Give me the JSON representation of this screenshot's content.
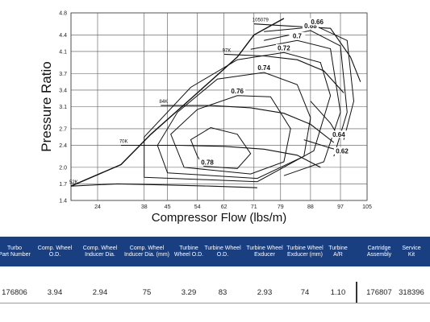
{
  "chart_data": {
    "type": "line",
    "title": "",
    "xlabel": "Compressor Flow (lbs/m)",
    "ylabel": "Pressure Ratio",
    "xlim": [
      16,
      105
    ],
    "ylim": [
      1.4,
      4.8
    ],
    "x_ticks": [
      "24",
      "38",
      "45",
      "54",
      "62",
      "71",
      "79",
      "88",
      "97",
      "105"
    ],
    "y_ticks": [
      "1.4",
      "1.7",
      "2.0",
      "2.4",
      "2.7",
      "3.1",
      "3.4",
      "3.7",
      "4.1",
      "4.4",
      "4.8"
    ],
    "grid": true,
    "surge_line": [
      [
        16,
        1.66
      ],
      [
        31,
        2.05
      ],
      [
        40,
        2.6
      ],
      [
        54,
        3.35
      ],
      [
        66,
        4.0
      ],
      [
        71,
        4.4
      ],
      [
        80,
        4.7
      ]
    ],
    "speed_lines": [
      {
        "label": "52K",
        "points": [
          [
            16,
            1.66
          ],
          [
            30,
            1.7
          ],
          [
            45,
            1.68
          ],
          [
            58,
            1.66
          ],
          [
            72,
            1.63
          ]
        ]
      },
      {
        "label": "70K",
        "points": [
          [
            31,
            2.4
          ],
          [
            48,
            2.4
          ],
          [
            62,
            2.38
          ],
          [
            74,
            2.33
          ],
          [
            84,
            2.22
          ],
          [
            91,
            2.0
          ]
        ]
      },
      {
        "label": "84K",
        "points": [
          [
            43,
            3.12
          ],
          [
            58,
            3.12
          ],
          [
            70,
            3.08
          ],
          [
            80,
            2.98
          ],
          [
            88,
            2.78
          ],
          [
            95,
            2.45
          ]
        ]
      },
      {
        "label": "97K",
        "points": [
          [
            62,
            4.05
          ],
          [
            74,
            4.02
          ],
          [
            84,
            3.95
          ],
          [
            92,
            3.75
          ],
          [
            98,
            3.35
          ]
        ]
      },
      {
        "label": "105079",
        "points": [
          [
            71,
            4.6
          ],
          [
            82,
            4.56
          ],
          [
            94,
            4.52
          ],
          [
            100,
            4.0
          ],
          [
            103,
            3.55
          ]
        ]
      }
    ],
    "efficiency_islands": [
      {
        "label": "0.78",
        "points": [
          [
            56,
            2.02
          ],
          [
            66,
            1.98
          ],
          [
            70,
            2.25
          ],
          [
            66,
            2.6
          ],
          [
            58,
            2.72
          ],
          [
            52,
            2.5
          ],
          [
            54,
            2.2
          ]
        ]
      },
      {
        "label": "0.76",
        "points": [
          [
            50,
            2.0
          ],
          [
            70,
            1.88
          ],
          [
            80,
            2.1
          ],
          [
            82,
            2.7
          ],
          [
            76,
            3.28
          ],
          [
            66,
            3.3
          ],
          [
            54,
            3.05
          ],
          [
            46,
            2.6
          ]
        ]
      },
      {
        "label": "0.74",
        "points": [
          [
            45,
            1.9
          ],
          [
            72,
            1.8
          ],
          [
            86,
            2.2
          ],
          [
            88,
            2.9
          ],
          [
            84,
            3.5
          ],
          [
            74,
            3.72
          ],
          [
            60,
            3.6
          ],
          [
            48,
            3.0
          ],
          [
            42,
            2.4
          ]
        ]
      },
      {
        "label": "0.72",
        "points": [
          [
            38,
            1.82
          ],
          [
            72,
            1.74
          ],
          [
            89,
            2.3
          ],
          [
            94,
            3.3
          ],
          [
            91,
            3.9
          ],
          [
            80,
            4.08
          ],
          [
            66,
            3.95
          ],
          [
            52,
            3.45
          ],
          [
            38,
            2.55
          ]
        ]
      },
      {
        "label": "0.7",
        "points": [
          [
            70,
            4.14
          ],
          [
            84,
            4.3
          ],
          [
            94,
            4.15
          ],
          [
            97,
            3.0
          ],
          [
            92,
            2.1
          ],
          [
            80,
            1.85
          ]
        ]
      },
      {
        "label": "0.68",
        "points": [
          [
            74,
            4.3
          ],
          [
            88,
            4.48
          ],
          [
            97,
            4.2
          ],
          [
            99,
            3.0
          ],
          [
            95,
            2.2
          ]
        ]
      },
      {
        "label": "0.66",
        "points": [
          [
            74,
            4.46
          ],
          [
            90,
            4.55
          ],
          [
            99,
            4.3
          ],
          [
            101,
            3.2
          ],
          [
            98,
            2.5
          ]
        ]
      },
      {
        "label": "0.64",
        "points": [
          [
            88,
            3.2
          ],
          [
            94,
            2.8
          ],
          [
            96,
            2.6
          ]
        ]
      },
      {
        "label": "0.62",
        "points": [
          [
            86,
            2.5
          ],
          [
            94,
            2.35
          ],
          [
            97,
            2.3
          ]
        ]
      }
    ]
  },
  "table": {
    "headers": [
      "Turbo\nPart Number",
      "Comp. Wheel\nO.D.",
      "Comp. Wheel\nInducer Dia.",
      "Comp. Wheel\nInducer Dia. (mm)",
      "Turbine\nWheel O.D.",
      "Turbine Wheel\nO.D.",
      "Turbine Wheel\nExducer",
      "Turbine Wheel\nExducer (mm)",
      "Turbine\nA/R",
      "Cartridge\nAssembly",
      "Service\nKit"
    ],
    "row": [
      "176806",
      "3.94",
      "2.94",
      "75",
      "3.29",
      "83",
      "2.93",
      "74",
      "1.10",
      "176807",
      "318396"
    ],
    "header_color": "#1a3f80"
  }
}
